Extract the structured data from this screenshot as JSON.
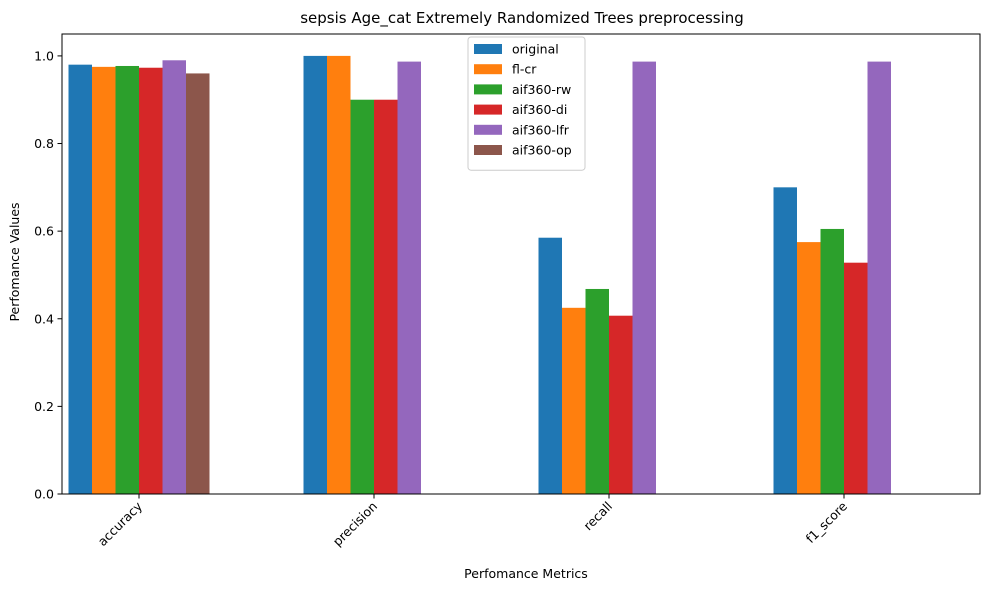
{
  "chart_data": {
    "type": "bar",
    "title": "sepsis Age_cat Extremely Randomized Trees preprocessing",
    "xlabel": "Perfomance Metrics",
    "ylabel": "Perfomance Values",
    "categories": [
      "accuracy",
      "precision",
      "recall",
      "f1_score"
    ],
    "ylim": [
      0,
      1.05
    ],
    "yticks": [
      "0.0",
      "0.2",
      "0.4",
      "0.6",
      "0.8",
      "1.0"
    ],
    "ytick_values": [
      0,
      0.2,
      0.4,
      0.6,
      0.8,
      1.0
    ],
    "legend_position": "upper-center",
    "grid": false,
    "series": [
      {
        "name": "original",
        "color": "#1f77b4",
        "values": [
          0.98,
          1.0,
          0.585,
          0.7
        ]
      },
      {
        "name": "fl-cr",
        "color": "#ff7f0e",
        "values": [
          0.975,
          1.0,
          0.425,
          0.575
        ]
      },
      {
        "name": "aif360-rw",
        "color": "#2ca02c",
        "values": [
          0.977,
          0.9,
          0.468,
          0.605
        ]
      },
      {
        "name": "aif360-di",
        "color": "#d62728",
        "values": [
          0.973,
          0.9,
          0.407,
          0.528
        ]
      },
      {
        "name": "aif360-lfr",
        "color": "#9467bd",
        "values": [
          0.99,
          0.987,
          0.987,
          0.987
        ]
      },
      {
        "name": "aif360-op",
        "color": "#8c564b",
        "values": [
          0.96,
          0.0,
          0.0,
          0.0
        ]
      }
    ]
  }
}
